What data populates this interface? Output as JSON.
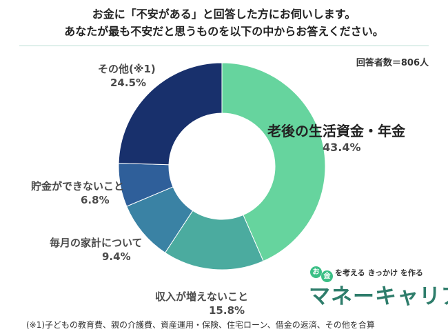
{
  "header": {
    "title_line1": "お金に「不安がある」と回答した方にお伺いします。",
    "title_line2": "あなたが最も不安だと思うものを以下の中からお答えください。"
  },
  "respondents": "回答者数＝806人",
  "chart_data": {
    "type": "pie",
    "style": "donut",
    "title": "お金に「不安がある」と回答した方にお伺いします。あなたが最も不安だと思うものを以下の中からお答えください。",
    "categories": [
      "老後の生活資金・年金",
      "収入が増えないこと",
      "毎月の家計について",
      "貯金ができないこと",
      "その他(※1)"
    ],
    "values": [
      43.4,
      15.8,
      9.4,
      6.8,
      24.5
    ],
    "value_labels": [
      "43.4%",
      "15.8%",
      "9.4%",
      "6.8%",
      "24.5%"
    ],
    "colors": [
      "#66d49e",
      "#4bab9f",
      "#3a82a4",
      "#2f5f9a",
      "#18306c"
    ],
    "legend": "none (labels placed next to slices)"
  },
  "brand": {
    "bubble1": "お",
    "bubble2": "金",
    "tagline": "を考える きっかけ を作る",
    "logo": "マネーキャリア"
  },
  "footnote": "(※1)子どもの教育費、親の介護費、資産運用・保険、住宅ローン、借金の返済、その他を合算"
}
